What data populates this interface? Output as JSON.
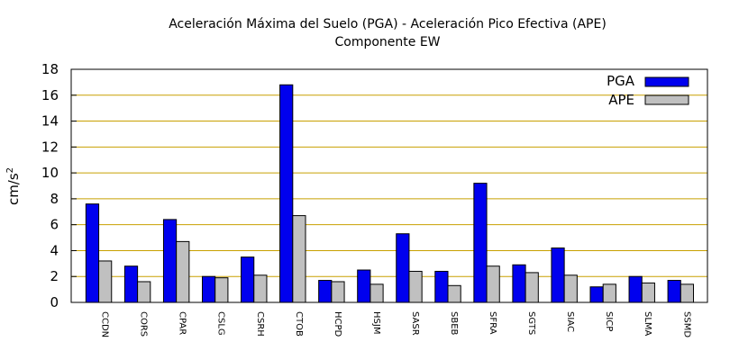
{
  "chart_data": {
    "type": "bar",
    "title_line1": "Aceleración Máxima del Suelo (PGA) -  Aceleración Pico Efectiva (APE)",
    "title_line2": "Componente EW",
    "ylabel_base": "cm/s",
    "ylabel_exp": "2",
    "xlabel": "",
    "ylim": [
      0,
      18
    ],
    "yticks": [
      "0",
      "2",
      "4",
      "6",
      "8",
      "10",
      "12",
      "14",
      "16",
      "18"
    ],
    "grid": "horizontal",
    "legend_position": "top-right",
    "categories": [
      "CCDN",
      "CORS",
      "CPAR",
      "CSLG",
      "CSRH",
      "CTOB",
      "HCPD",
      "HSJM",
      "SASR",
      "SBEB",
      "SFRA",
      "SGTS",
      "SIAC",
      "SICP",
      "SLMA",
      "SSMD"
    ],
    "series": [
      {
        "name": "PGA",
        "color": "#0000ee",
        "values": [
          7.6,
          2.8,
          6.4,
          2.0,
          3.5,
          16.8,
          1.7,
          2.5,
          5.3,
          2.4,
          9.2,
          2.9,
          4.2,
          1.2,
          2.0,
          1.7
        ]
      },
      {
        "name": "APE",
        "color": "#c0c0c0",
        "values": [
          3.2,
          1.6,
          4.7,
          1.9,
          2.1,
          6.7,
          1.6,
          1.4,
          2.4,
          1.3,
          2.8,
          2.3,
          2.1,
          1.4,
          1.5,
          1.4
        ]
      }
    ],
    "colors": {
      "grid": "#c8a000",
      "axis": "#000000"
    }
  }
}
